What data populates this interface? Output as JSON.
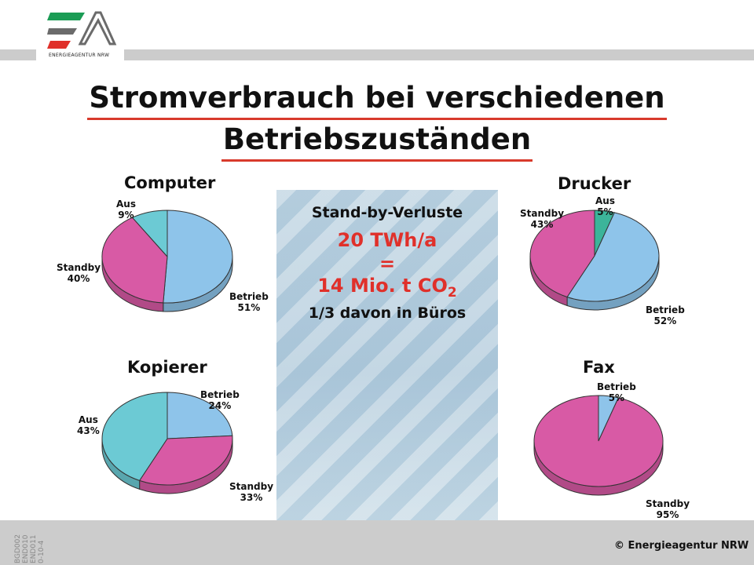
{
  "logo": {
    "text": "ENERGIEAGENTUR NRW"
  },
  "title": {
    "line1": "Stromverbrauch bei verschiedenen",
    "line2": "Betriebszuständen"
  },
  "center": {
    "heading": "Stand-by-Verluste",
    "value1": "20 TWh/a",
    "equals": "=",
    "value2_main": "14 Mio. t CO",
    "value2_sub": "2",
    "note": "1/3 davon in Büros"
  },
  "colors": {
    "betrieb": "#8ec4ea",
    "standby": "#d85aa5",
    "aus_computer": "#6ccad4",
    "aus_drucker": "#3cb49a",
    "aus_kopierer": "#6ccad4",
    "accent_red": "#e0302a"
  },
  "chart_data": [
    {
      "type": "pie",
      "title": "Computer",
      "labels": [
        {
          "name": "Betrieb",
          "value": "51%"
        },
        {
          "name": "Standby",
          "value": "40%"
        },
        {
          "name": "Aus",
          "value": "9%"
        }
      ],
      "values": [
        51,
        40,
        9
      ]
    },
    {
      "type": "pie",
      "title": "Drucker",
      "labels": [
        {
          "name": "Aus",
          "value": "5%"
        },
        {
          "name": "Betrieb",
          "value": "52%"
        },
        {
          "name": "Standby",
          "value": "43%"
        }
      ],
      "values": [
        5,
        52,
        43
      ]
    },
    {
      "type": "pie",
      "title": "Kopierer",
      "labels": [
        {
          "name": "Betrieb",
          "value": "24%"
        },
        {
          "name": "Standby",
          "value": "33%"
        },
        {
          "name": "Aus",
          "value": "43%"
        }
      ],
      "values": [
        24,
        33,
        43
      ]
    },
    {
      "type": "pie",
      "title": "Fax",
      "labels": [
        {
          "name": "Betrieb",
          "value": "5%"
        },
        {
          "name": "Standby",
          "value": "95%"
        }
      ],
      "values": [
        5,
        95
      ]
    }
  ],
  "footer": {
    "copyright": "© Energieagentur NRW",
    "codes": [
      "BGD002",
      "END010",
      "END011",
      "0-10-4"
    ]
  }
}
